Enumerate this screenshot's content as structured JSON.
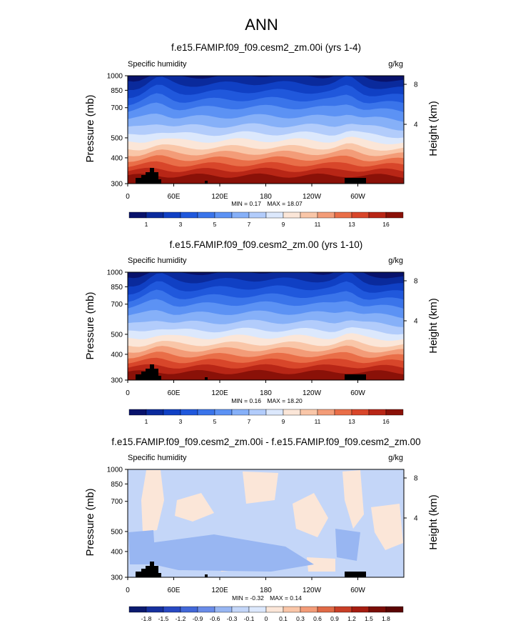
{
  "figure": {
    "title": "ANN"
  },
  "common": {
    "var_label": "Specific humidity",
    "units": "g/kg",
    "ylabel": "Pressure (mb)",
    "y2label": "Height (km)",
    "pressure_ticks": [
      300,
      400,
      500,
      700,
      850,
      1000
    ],
    "height_ticks": [
      8,
      4
    ],
    "lon_ticks": [
      "0",
      "60E",
      "120E",
      "180",
      "120W",
      "60W"
    ],
    "lon_tick_values": [
      0,
      60,
      120,
      180,
      240,
      300
    ]
  },
  "chart_data": [
    {
      "type": "heatmap",
      "title": "f.e15.FAMIP.f09_f09.cesm2_zm.00i (yrs 1-4)",
      "min_label": "MIN =",
      "min": "0.17",
      "max_label": "MAX =",
      "max": "18.07",
      "xlim": [
        0,
        360
      ],
      "ylim": [
        1000,
        300
      ],
      "colorbar_labels": [
        "1",
        "3",
        "5",
        "7",
        "9",
        "11",
        "13",
        "16"
      ]
    },
    {
      "type": "heatmap",
      "title": "f.e15.FAMIP.f09_f09.cesm2_zm.00 (yrs 1-10)",
      "min_label": "MIN =",
      "min": "0.16",
      "max_label": "MAX =",
      "max": "18.20",
      "xlim": [
        0,
        360
      ],
      "ylim": [
        1000,
        300
      ],
      "colorbar_labels": [
        "1",
        "3",
        "5",
        "7",
        "9",
        "11",
        "13",
        "16"
      ]
    },
    {
      "type": "heatmap",
      "title": "f.e15.FAMIP.f09_f09.cesm2_zm.00i - f.e15.FAMIP.f09_f09.cesm2_zm.00",
      "min_label": "MIN =",
      "min": "-0.32",
      "max_label": "MAX =",
      "max": "0.14",
      "xlim": [
        0,
        360
      ],
      "ylim": [
        1000,
        300
      ],
      "colorbar_labels": [
        "-1.8",
        "-1.5",
        "-1.2",
        "-0.9",
        "-0.6",
        "-0.3",
        "-0.1",
        "0",
        "0.1",
        "0.3",
        "0.6",
        "0.9",
        "1.2",
        "1.5",
        "1.8"
      ]
    }
  ],
  "colors": {
    "scale16": [
      "#08126b",
      "#0a2a9c",
      "#1040c4",
      "#2058dc",
      "#3a74ea",
      "#5c92f4",
      "#86b0f8",
      "#b2ccfb",
      "#dce8fc",
      "#fbe6d8",
      "#f9c6a8",
      "#f39c78",
      "#e96e48",
      "#d8462a",
      "#b82616",
      "#8a1108"
    ],
    "diff": [
      "#0b1a6e",
      "#16309e",
      "#2848c2",
      "#4268d8",
      "#6a8ce8",
      "#98b6f2",
      "#c4d6f8",
      "#dce8fc",
      "#fbe6d8",
      "#f9c6a8",
      "#f39c78",
      "#e06a46",
      "#c83e26",
      "#a51c10",
      "#7a0d06",
      "#5a0503"
    ],
    "topo": "#000000"
  }
}
